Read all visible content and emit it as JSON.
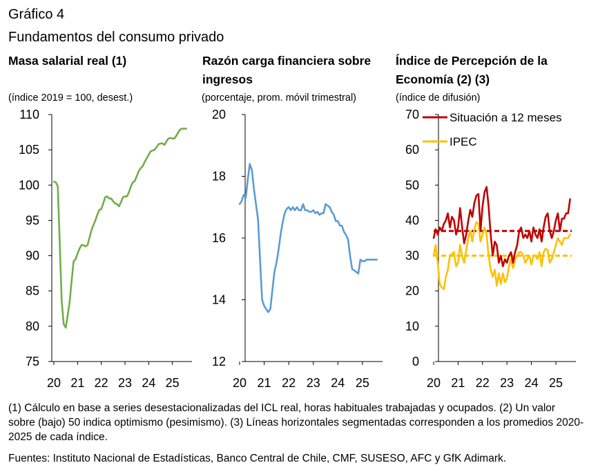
{
  "figure": {
    "label": "Gráfico 4",
    "title": "Fundamentos del consumo privado",
    "footnote": "(1) Cálculo en base a series desestacionalizadas del ICL real, horas habituales trabajadas y ocupados. (2) Un valor sobre (bajo) 50 indica optimismo (pesimismo). (3) Líneas horizontales segmentadas corresponden a los promedios 2020-2025 de cada índice.",
    "sources": "Fuentes: Instituto Nacional de Estadísticas, Banco Central de Chile, CMF, SUSESO, AFC y GfK Adimark."
  },
  "chart_data": [
    {
      "type": "line",
      "title": "Masa salarial real (1)",
      "ylabel": "(índice 2019 = 100, desest.)",
      "ylim": [
        75,
        110
      ],
      "yticks": [
        75,
        80,
        85,
        90,
        95,
        100,
        105,
        110
      ],
      "xlim": [
        2020,
        2025.65
      ],
      "xticks": [
        2020,
        2021,
        2022,
        2023,
        2024,
        2025
      ],
      "xticklabels": [
        "20",
        "21",
        "22",
        "23",
        "24",
        "25"
      ],
      "colors": {
        "series": "#70ad47"
      },
      "series": [
        {
          "x": [
            2020.0,
            2020.083,
            2020.167,
            2020.25,
            2020.333,
            2020.417,
            2020.5,
            2020.583,
            2020.667,
            2020.75,
            2020.833,
            2020.917,
            2021.0,
            2021.083,
            2021.167,
            2021.25,
            2021.333,
            2021.417,
            2021.5,
            2021.583,
            2021.667,
            2021.75,
            2021.833,
            2021.917,
            2022.0,
            2022.083,
            2022.167,
            2022.25,
            2022.333,
            2022.417,
            2022.5,
            2022.583,
            2022.667,
            2022.75,
            2022.833,
            2022.917,
            2023.0,
            2023.083,
            2023.167,
            2023.25,
            2023.333,
            2023.417,
            2023.5,
            2023.583,
            2023.667,
            2023.75,
            2023.833,
            2023.917,
            2024.0,
            2024.083,
            2024.167,
            2024.25,
            2024.333,
            2024.417,
            2024.5,
            2024.583,
            2024.667,
            2024.75,
            2024.833,
            2024.917,
            2025.0,
            2025.083,
            2025.167,
            2025.25,
            2025.333,
            2025.417,
            2025.5,
            2025.583
          ],
          "values": [
            100.5,
            100.4,
            99.8,
            91.5,
            83.5,
            80.3,
            79.8,
            81.5,
            83.5,
            86.5,
            89.2,
            89.5,
            90.3,
            91.0,
            91.5,
            91.5,
            91.3,
            91.5,
            92.5,
            93.6,
            94.3,
            95.0,
            95.8,
            96.5,
            96.6,
            97.4,
            98.3,
            98.4,
            98.1,
            98.1,
            97.7,
            97.4,
            97.3,
            97.0,
            97.6,
            98.3,
            98.4,
            98.4,
            99.0,
            99.8,
            100.4,
            100.6,
            101.3,
            102.0,
            102.4,
            102.7,
            103.3,
            103.8,
            104.3,
            104.8,
            104.9,
            105.0,
            105.4,
            105.8,
            105.9,
            105.9,
            105.7,
            106.2,
            106.6,
            106.7,
            106.6,
            106.6,
            107.0,
            107.5,
            107.9,
            108.0,
            108.0,
            108.0
          ]
        }
      ]
    },
    {
      "type": "line",
      "title": "Razón carga financiera sobre ingresos",
      "ylabel": "(porcentaje, prom. móvil trimestral)",
      "ylim": [
        12,
        20
      ],
      "yticks": [
        12,
        14,
        16,
        18,
        20
      ],
      "xlim": [
        2020,
        2025.65
      ],
      "xticks": [
        2020,
        2021,
        2022,
        2023,
        2024,
        2025
      ],
      "xticklabels": [
        "20",
        "21",
        "22",
        "23",
        "24",
        "25"
      ],
      "colors": {
        "series": "#5b9bd5"
      },
      "series": [
        {
          "x": [
            2020.0,
            2020.083,
            2020.167,
            2020.25,
            2020.333,
            2020.417,
            2020.5,
            2020.583,
            2020.667,
            2020.75,
            2020.833,
            2020.917,
            2021.0,
            2021.083,
            2021.167,
            2021.25,
            2021.333,
            2021.417,
            2021.5,
            2021.583,
            2021.667,
            2021.75,
            2021.833,
            2021.917,
            2022.0,
            2022.083,
            2022.167,
            2022.25,
            2022.333,
            2022.417,
            2022.5,
            2022.583,
            2022.667,
            2022.75,
            2022.833,
            2022.917,
            2023.0,
            2023.083,
            2023.167,
            2023.25,
            2023.333,
            2023.417,
            2023.5,
            2023.583,
            2023.667,
            2023.75,
            2023.833,
            2023.917,
            2024.0,
            2024.083,
            2024.167,
            2024.25,
            2024.333,
            2024.417,
            2024.5,
            2024.583,
            2024.667,
            2024.75,
            2024.833,
            2024.917,
            2025.0,
            2025.083,
            2025.167,
            2025.25,
            2025.333,
            2025.417,
            2025.5,
            2025.583
          ],
          "values": [
            17.1,
            17.2,
            17.4,
            17.3,
            17.9,
            18.4,
            18.2,
            17.6,
            17.1,
            16.6,
            15.3,
            14.0,
            13.8,
            13.7,
            13.6,
            13.7,
            14.3,
            14.9,
            15.2,
            15.6,
            16.1,
            16.5,
            16.8,
            16.95,
            17.0,
            16.9,
            17.0,
            16.9,
            17.0,
            16.9,
            16.9,
            17.1,
            16.9,
            16.9,
            16.85,
            16.85,
            16.9,
            16.8,
            16.85,
            16.75,
            16.8,
            16.8,
            17.1,
            17.05,
            17.0,
            16.85,
            16.75,
            16.55,
            16.55,
            16.4,
            16.4,
            16.2,
            16.1,
            15.95,
            15.4,
            15.0,
            14.95,
            14.9,
            14.85,
            15.3,
            15.25,
            15.25,
            15.3,
            15.3,
            15.3,
            15.3,
            15.3,
            15.3
          ]
        }
      ]
    },
    {
      "type": "line",
      "title": "Índice de Percepción de la Economía (2) (3)",
      "ylabel": "(índice de difusión)",
      "ylim": [
        0,
        70
      ],
      "yticks": [
        0,
        10,
        20,
        30,
        40,
        50,
        60,
        70
      ],
      "xlim": [
        2020,
        2025.65
      ],
      "xticks": [
        2020,
        2021,
        2022,
        2023,
        2024,
        2025
      ],
      "xticklabels": [
        "20",
        "21",
        "22",
        "23",
        "24",
        "25"
      ],
      "legend": "top-left",
      "colors": {
        "situacion": "#c00000",
        "ipec": "#ffc000"
      },
      "series": [
        {
          "name": "Situación a 12 meses",
          "color": "#c00000",
          "x": [
            2020.0,
            2020.083,
            2020.167,
            2020.25,
            2020.333,
            2020.417,
            2020.5,
            2020.583,
            2020.667,
            2020.75,
            2020.833,
            2020.917,
            2021.0,
            2021.083,
            2021.167,
            2021.25,
            2021.333,
            2021.417,
            2021.5,
            2021.583,
            2021.667,
            2021.75,
            2021.833,
            2021.917,
            2022.0,
            2022.083,
            2022.167,
            2022.25,
            2022.333,
            2022.417,
            2022.5,
            2022.583,
            2022.667,
            2022.75,
            2022.833,
            2022.917,
            2023.0,
            2023.083,
            2023.167,
            2023.25,
            2023.333,
            2023.417,
            2023.5,
            2023.583,
            2023.667,
            2023.75,
            2023.833,
            2023.917,
            2024.0,
            2024.083,
            2024.167,
            2024.25,
            2024.333,
            2024.417,
            2024.5,
            2024.583,
            2024.667,
            2024.75,
            2024.833,
            2024.917,
            2025.0,
            2025.083,
            2025.167,
            2025.25,
            2025.333,
            2025.417,
            2025.5,
            2025.583
          ],
          "values": [
            35.0,
            37.5,
            36.0,
            38.0,
            37.0,
            39.0,
            40.0,
            42.0,
            38.0,
            41.0,
            40.0,
            36.0,
            38.0,
            43.5,
            38.0,
            33.5,
            36.0,
            40.0,
            43.0,
            41.0,
            45.0,
            47.0,
            47.5,
            37.0,
            44.0,
            48.0,
            49.5,
            44.0,
            36.0,
            30.0,
            34.0,
            33.0,
            28.0,
            30.0,
            27.0,
            29.0,
            28.0,
            30.0,
            31.0,
            28.0,
            31.0,
            33.0,
            37.0,
            38.0,
            35.0,
            36.0,
            35.0,
            37.0,
            34.0,
            38.0,
            36.0,
            35.0,
            37.5,
            34.0,
            38.0,
            41.0,
            42.0,
            37.0,
            35.0,
            37.0,
            40.0,
            42.0,
            37.0,
            40.5,
            40.5,
            42.0,
            42.0,
            46.0
          ]
        },
        {
          "name": "IPEC",
          "color": "#ffc000",
          "x": [
            2020.0,
            2020.083,
            2020.167,
            2020.25,
            2020.333,
            2020.417,
            2020.5,
            2020.583,
            2020.667,
            2020.75,
            2020.833,
            2020.917,
            2021.0,
            2021.083,
            2021.167,
            2021.25,
            2021.333,
            2021.417,
            2021.5,
            2021.583,
            2021.667,
            2021.75,
            2021.833,
            2021.917,
            2022.0,
            2022.083,
            2022.167,
            2022.25,
            2022.333,
            2022.417,
            2022.5,
            2022.583,
            2022.667,
            2022.75,
            2022.833,
            2022.917,
            2023.0,
            2023.083,
            2023.167,
            2023.25,
            2023.333,
            2023.417,
            2023.5,
            2023.583,
            2023.667,
            2023.75,
            2023.833,
            2023.917,
            2024.0,
            2024.083,
            2024.167,
            2024.25,
            2024.333,
            2024.417,
            2024.5,
            2024.583,
            2024.667,
            2024.75,
            2024.833,
            2024.917,
            2025.0,
            2025.083,
            2025.167,
            2025.25,
            2025.333,
            2025.417,
            2025.5,
            2025.583
          ],
          "values": [
            30.0,
            33.0,
            28.0,
            22.0,
            21.0,
            20.5,
            24.0,
            26.0,
            30.0,
            30.5,
            31.0,
            27.0,
            28.0,
            33.0,
            30.0,
            28.0,
            31.5,
            35.0,
            37.0,
            34.0,
            37.5,
            39.5,
            39.0,
            34.0,
            36.0,
            38.0,
            36.0,
            30.0,
            26.0,
            24.0,
            26.0,
            21.5,
            25.0,
            22.0,
            25.0,
            22.5,
            23.5,
            27.0,
            29.0,
            26.5,
            29.0,
            30.0,
            31.0,
            31.0,
            30.0,
            28.0,
            29.0,
            30.0,
            27.5,
            30.0,
            30.0,
            29.0,
            31.0,
            27.0,
            31.0,
            32.0,
            31.5,
            28.0,
            29.0,
            31.0,
            33.0,
            35.0,
            34.0,
            33.0,
            35.0,
            35.0,
            35.0,
            36.0
          ]
        }
      ],
      "reference_lines": [
        {
          "series": "Situación a 12 meses",
          "value": 37.0,
          "color": "#c00000",
          "style": "dashed"
        },
        {
          "series": "IPEC",
          "value": 30.0,
          "color": "#ffc000",
          "style": "dashed"
        }
      ]
    }
  ]
}
